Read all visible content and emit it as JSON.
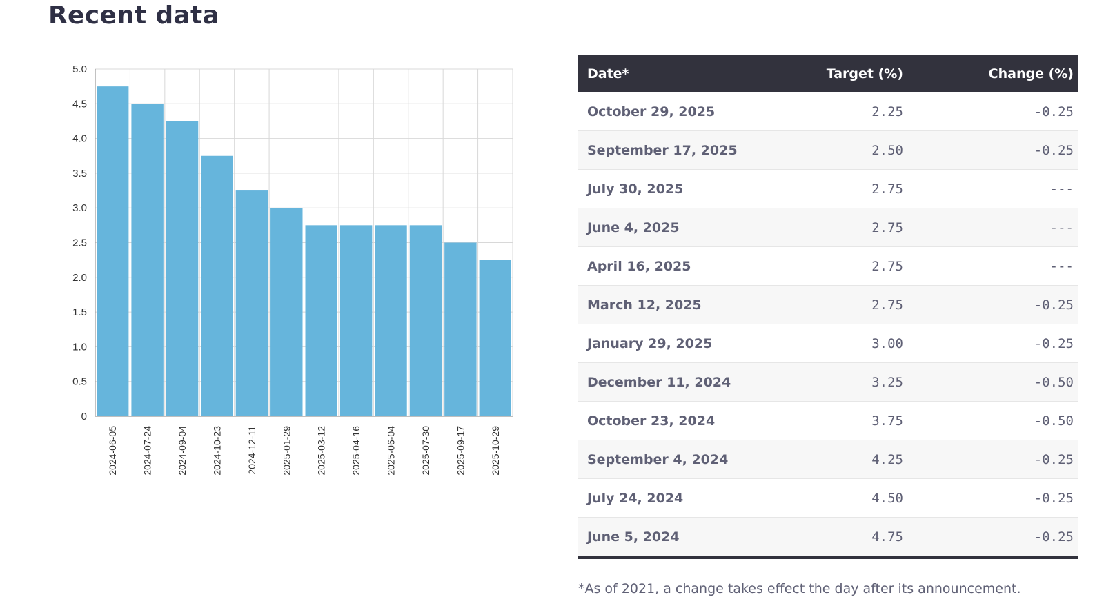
{
  "page": {
    "title": "Recent data"
  },
  "chart_data": {
    "type": "bar",
    "title": "",
    "xlabel": "",
    "ylabel": "",
    "categories": [
      "2024-06-05",
      "2024-07-24",
      "2024-09-04",
      "2024-10-23",
      "2024-12-11",
      "2025-01-29",
      "2025-03-12",
      "2025-04-16",
      "2025-06-04",
      "2025-07-30",
      "2025-09-17",
      "2025-10-29"
    ],
    "values": [
      4.75,
      4.5,
      4.25,
      3.75,
      3.25,
      3.0,
      2.75,
      2.75,
      2.75,
      2.75,
      2.5,
      2.25
    ],
    "ylim": [
      0,
      5.0
    ],
    "yticks": [
      "0",
      "0.5",
      "1.0",
      "1.5",
      "2.0",
      "2.5",
      "3.0",
      "3.5",
      "4.0",
      "4.5",
      "5.0"
    ],
    "grid": true,
    "bar_color": "#66b5dc"
  },
  "table": {
    "headers": {
      "date": "Date*",
      "target": "Target (%)",
      "change": "Change (%)"
    },
    "rows": [
      {
        "date": "October 29, 2025",
        "target": "2.25",
        "change": "-0.25"
      },
      {
        "date": "September 17, 2025",
        "target": "2.50",
        "change": "-0.25"
      },
      {
        "date": "July 30, 2025",
        "target": "2.75",
        "change": "---"
      },
      {
        "date": "June 4, 2025",
        "target": "2.75",
        "change": "---"
      },
      {
        "date": "April 16, 2025",
        "target": "2.75",
        "change": "---"
      },
      {
        "date": "March 12, 2025",
        "target": "2.75",
        "change": "-0.25"
      },
      {
        "date": "January 29, 2025",
        "target": "3.00",
        "change": "-0.25"
      },
      {
        "date": "December 11, 2024",
        "target": "3.25",
        "change": "-0.50"
      },
      {
        "date": "October 23, 2024",
        "target": "3.75",
        "change": "-0.50"
      },
      {
        "date": "September 4, 2024",
        "target": "4.25",
        "change": "-0.25"
      },
      {
        "date": "July 24, 2024",
        "target": "4.50",
        "change": "-0.25"
      },
      {
        "date": "June 5, 2024",
        "target": "4.75",
        "change": "-0.25"
      }
    ]
  },
  "footnote": "*As of 2021, a change takes effect the day after its announcement."
}
